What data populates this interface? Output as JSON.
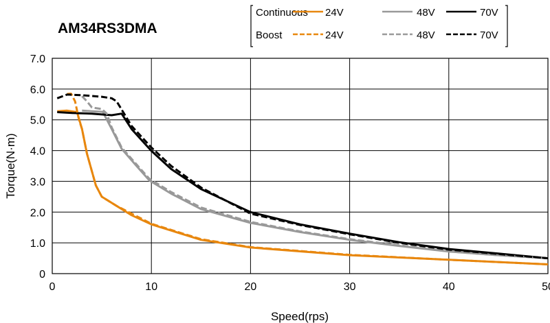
{
  "chart_data": {
    "type": "line",
    "title": "AM34RS3DMA",
    "xlabel": "Speed(rps)",
    "ylabel": "Torque(N·m)",
    "xlim": [
      0,
      50
    ],
    "ylim": [
      0,
      7
    ],
    "xticks": [
      "0",
      "10",
      "20",
      "30",
      "40",
      "50"
    ],
    "yticks": [
      "0",
      "1.0",
      "2.0",
      "3.0",
      "4.0",
      "5.0",
      "6.0",
      "7.0"
    ],
    "grid": true,
    "legend": {
      "placement": "top-right",
      "row_labels": [
        "Continuous",
        "Boost"
      ]
    },
    "series": [
      {
        "name": "24V",
        "mode": "Continuous",
        "color": "#E8870E",
        "dash": false,
        "x": [
          0.5,
          1.5,
          2.5,
          3,
          3.5,
          4.4,
          5,
          6.5,
          8,
          10,
          15,
          20,
          30,
          40,
          50
        ],
        "y": [
          5.28,
          5.3,
          5.25,
          4.7,
          3.9,
          2.87,
          2.5,
          2.2,
          1.9,
          1.6,
          1.1,
          0.85,
          0.6,
          0.45,
          0.3
        ]
      },
      {
        "name": "48V",
        "mode": "Continuous",
        "color": "#999999",
        "dash": false,
        "x": [
          3,
          4,
          5.1,
          6,
          7,
          8.5,
          9.8,
          12,
          15,
          20,
          25,
          30,
          35,
          40,
          45,
          50
        ],
        "y": [
          5.3,
          5.28,
          5.26,
          4.7,
          4.06,
          3.5,
          3.03,
          2.6,
          2.1,
          1.65,
          1.35,
          1.1,
          0.9,
          0.72,
          0.6,
          0.5
        ]
      },
      {
        "name": "70V",
        "mode": "Continuous",
        "color": "#000000",
        "dash": false,
        "x": [
          0.5,
          2,
          4,
          6,
          7,
          8,
          10,
          12,
          15,
          20,
          25,
          30,
          35,
          40,
          45,
          50
        ],
        "y": [
          5.25,
          5.22,
          5.2,
          5.15,
          5.2,
          4.7,
          3.99,
          3.4,
          2.75,
          2.0,
          1.6,
          1.3,
          1.02,
          0.8,
          0.65,
          0.5
        ]
      },
      {
        "name": "24V",
        "mode": "Boost",
        "color": "#E8870E",
        "dash": true,
        "x": [
          1.5,
          1.9,
          2.3,
          2.7,
          3,
          3.5,
          4.4,
          5,
          6.5,
          8,
          10,
          15,
          20,
          30,
          40,
          50
        ],
        "y": [
          5.84,
          5.85,
          5.6,
          5.0,
          4.7,
          3.9,
          2.87,
          2.5,
          2.2,
          1.95,
          1.62,
          1.12,
          0.86,
          0.61,
          0.45,
          0.3
        ]
      },
      {
        "name": "48V",
        "mode": "Boost",
        "color": "#999999",
        "dash": true,
        "x": [
          3,
          3.5,
          4,
          5,
          5.5,
          6,
          7,
          8.5,
          9.8,
          12,
          15,
          20,
          25,
          30,
          35,
          40,
          45,
          50
        ],
        "y": [
          5.77,
          5.6,
          5.4,
          5.35,
          5.2,
          4.75,
          4.1,
          3.55,
          3.08,
          2.65,
          2.15,
          1.68,
          1.37,
          1.12,
          0.92,
          0.72,
          0.6,
          0.5
        ]
      },
      {
        "name": "70V",
        "mode": "Boost",
        "color": "#000000",
        "dash": true,
        "x": [
          0.5,
          1.5,
          3,
          5,
          6,
          6.5,
          8,
          10,
          12,
          15,
          20,
          25,
          30,
          35,
          40,
          45,
          50
        ],
        "y": [
          5.7,
          5.82,
          5.8,
          5.75,
          5.7,
          5.6,
          4.8,
          4.1,
          3.5,
          2.8,
          1.95,
          1.58,
          1.28,
          1.0,
          0.78,
          0.64,
          0.5
        ]
      }
    ]
  }
}
